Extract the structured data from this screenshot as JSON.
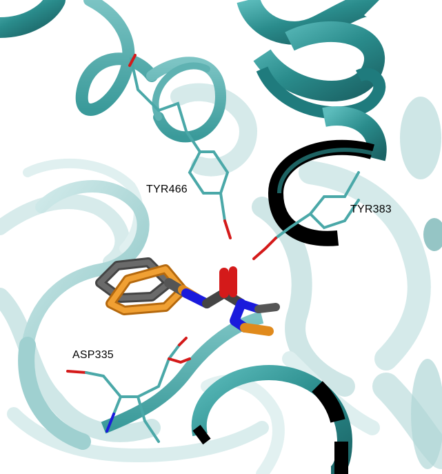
{
  "residue_labels": {
    "tyr466": "TYR466",
    "tyr383": "TYR383",
    "asp335": "ASP335"
  },
  "colors": {
    "background": "#ffffff",
    "ribbon_dark": "#2a8c8c",
    "ribbon_mid": "#4aa8a8",
    "ribbon_light": "#9fd0d0",
    "ribbon_shadow": "#1f6e70",
    "highlight_black": "#000000",
    "ligand_orange": "#e08a1c",
    "ligand_grey": "#555555",
    "nitrogen_blue": "#1a1adc",
    "oxygen_red": "#d41a1a"
  },
  "icons": {
    "ribbons": "protein-cartoon-ribbon",
    "ligands": "stick-molecule"
  }
}
